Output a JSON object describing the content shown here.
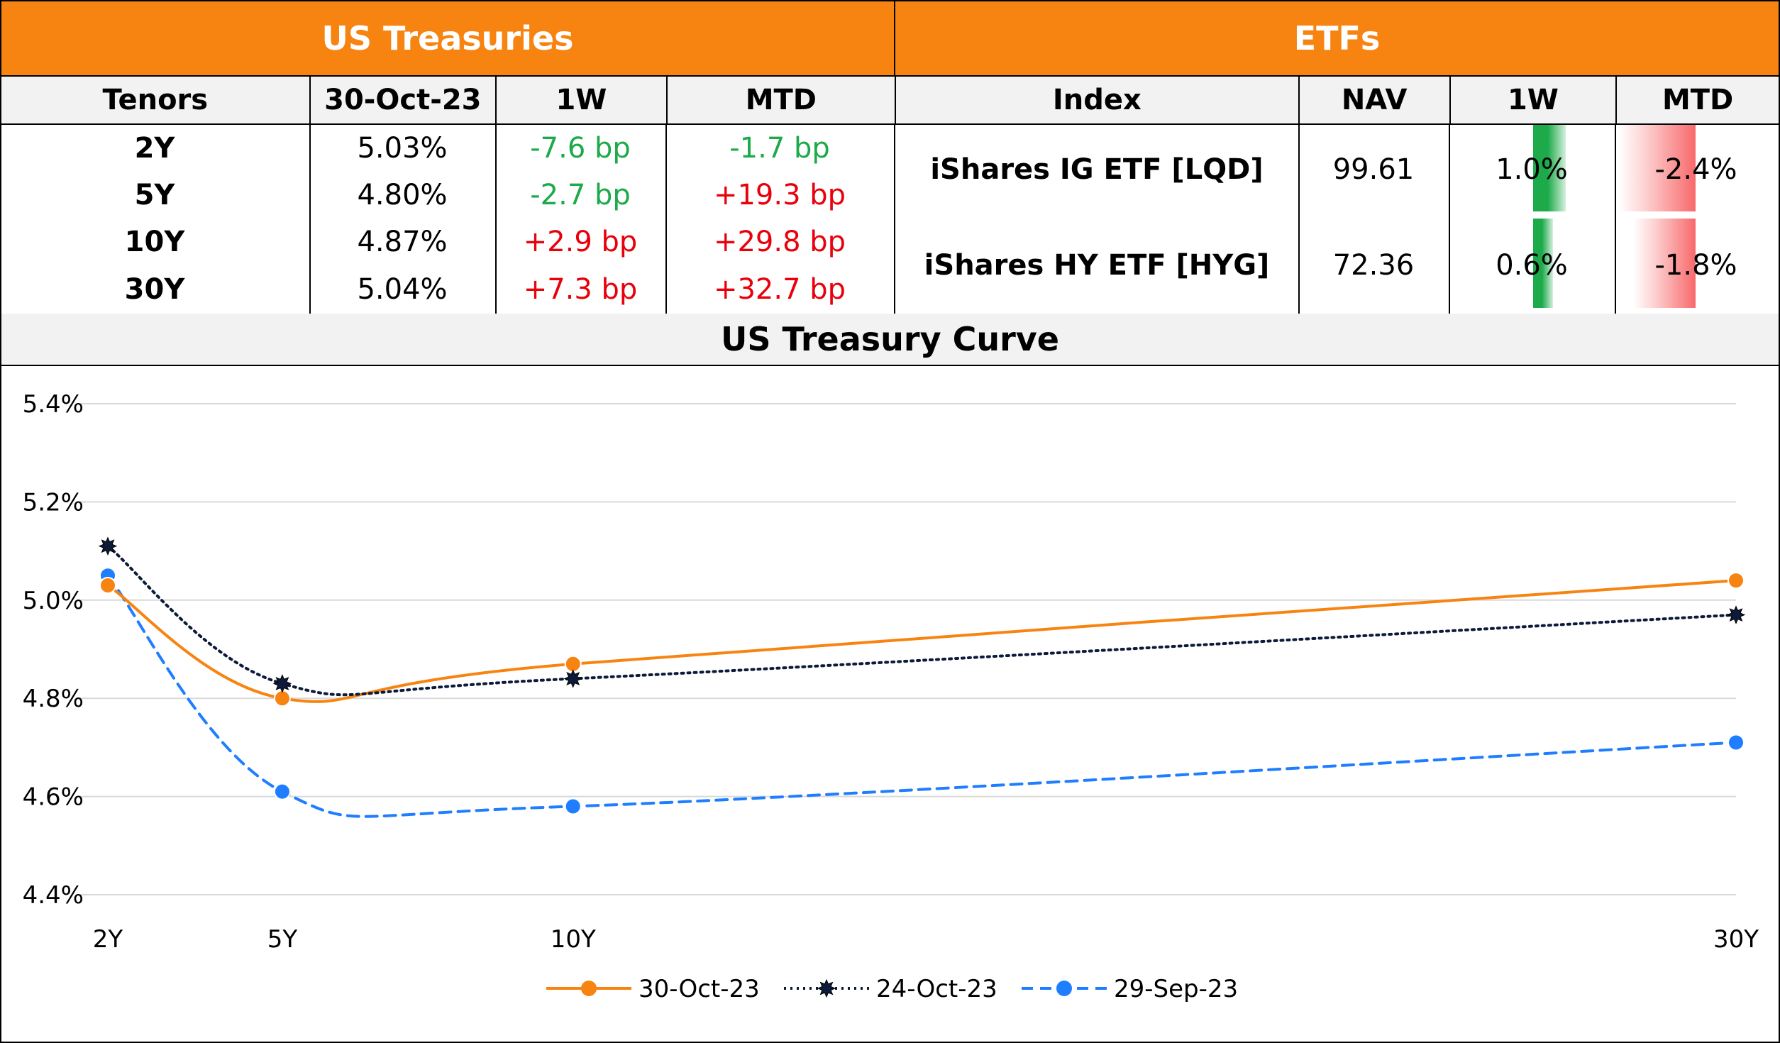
{
  "treasuries": {
    "title": "US Treasuries",
    "headers": [
      "Tenors",
      "30-Oct-23",
      "1W",
      "MTD"
    ],
    "rows": [
      {
        "tenor": "2Y",
        "yield": "5.03%",
        "w1": "-7.6 bp",
        "mtd": "-1.7 bp"
      },
      {
        "tenor": "5Y",
        "yield": "4.80%",
        "w1": "-2.7 bp",
        "mtd": "+19.3 bp"
      },
      {
        "tenor": "10Y",
        "yield": "4.87%",
        "w1": "+2.9 bp",
        "mtd": "+29.8 bp"
      },
      {
        "tenor": "30Y",
        "yield": "5.04%",
        "w1": "+7.3 bp",
        "mtd": "+32.7 bp"
      }
    ]
  },
  "etfs": {
    "title": "ETFs",
    "headers": [
      "Index",
      "NAV",
      "1W",
      "MTD"
    ],
    "rows": [
      {
        "index": "iShares IG ETF [LQD]",
        "nav": "99.61",
        "w1": "1.0%",
        "w1_value": 1.0,
        "mtd": "-2.4%",
        "mtd_value": -2.4
      },
      {
        "index": "iShares HY ETF [HYG]",
        "nav": "72.36",
        "w1": "0.6%",
        "w1_value": 0.6,
        "mtd": "-1.8%",
        "mtd_value": -1.8
      }
    ]
  },
  "colors": {
    "header_bg": "#F78411",
    "positive_bp": "#E8000B",
    "negative_bp": "#1DAA4B",
    "databar_green": "#1DAA4B",
    "databar_red": "#F8696B",
    "series_1": "#F78411",
    "series_2": "#0D1A3A",
    "series_3": "#1E7EFF"
  },
  "chart_data": {
    "type": "line",
    "title": "US Treasury Curve",
    "categories": [
      "2Y",
      "5Y",
      "10Y",
      "30Y"
    ],
    "x": [
      2,
      5,
      10,
      30
    ],
    "ylim": [
      4.4,
      5.4
    ],
    "yticks": [
      "5.4%",
      "5.2%",
      "5.0%",
      "4.8%",
      "4.6%",
      "4.4%"
    ],
    "grid": true,
    "legend_position": "bottom",
    "series": [
      {
        "name": "30-Oct-23",
        "values": [
          5.03,
          4.8,
          4.87,
          5.04
        ],
        "style": "solid",
        "marker": "circle"
      },
      {
        "name": "24-Oct-23",
        "values": [
          5.11,
          4.83,
          4.84,
          4.97
        ],
        "style": "dotted",
        "marker": "star"
      },
      {
        "name": "29-Sep-23",
        "values": [
          5.05,
          4.61,
          4.58,
          4.71
        ],
        "style": "dashed",
        "marker": "circle"
      }
    ]
  }
}
